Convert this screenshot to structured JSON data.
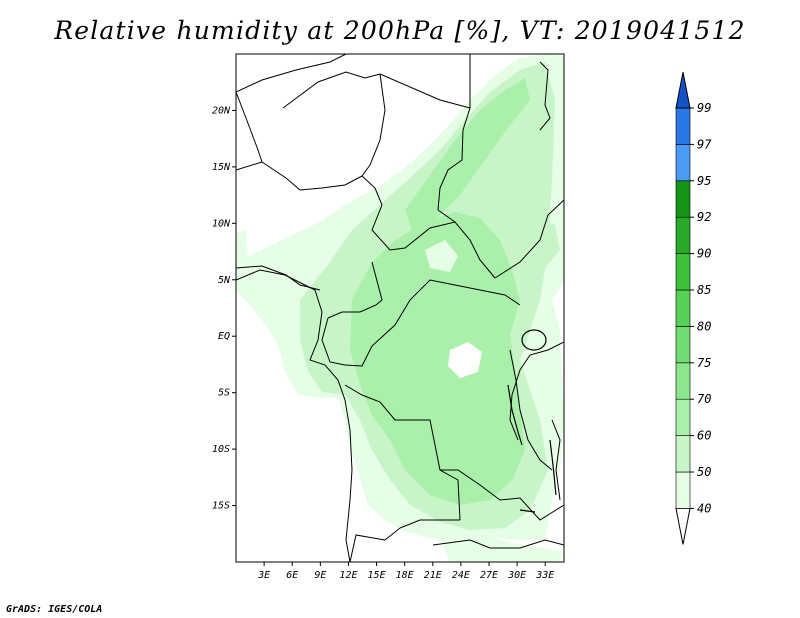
{
  "title": "Relative humidity at 200hPa [%], VT: 2019041512",
  "credit": "GrADS: IGES/COLA",
  "map": {
    "lon_range": [
      0,
      35
    ],
    "lat_range": [
      -20,
      25
    ],
    "lat_ticks": [
      {
        "lat": 20,
        "label": "20N"
      },
      {
        "lat": 15,
        "label": "15N"
      },
      {
        "lat": 10,
        "label": "10N"
      },
      {
        "lat": 5,
        "label": "5N"
      },
      {
        "lat": 0,
        "label": "EQ"
      },
      {
        "lat": -5,
        "label": "5S"
      },
      {
        "lat": -10,
        "label": "10S"
      },
      {
        "lat": -15,
        "label": "15S"
      }
    ],
    "lon_ticks": [
      {
        "lon": 3,
        "label": "3E"
      },
      {
        "lon": 6,
        "label": "6E"
      },
      {
        "lon": 9,
        "label": "9E"
      },
      {
        "lon": 12,
        "label": "12E"
      },
      {
        "lon": 15,
        "label": "15E"
      },
      {
        "lon": 18,
        "label": "18E"
      },
      {
        "lon": 21,
        "label": "21E"
      },
      {
        "lon": 24,
        "label": "24E"
      },
      {
        "lon": 27,
        "label": "27E"
      },
      {
        "lon": 30,
        "label": "30E"
      },
      {
        "lon": 33,
        "label": "33E"
      }
    ]
  },
  "colorbar": {
    "levels": [
      "40",
      "50",
      "60",
      "70",
      "75",
      "80",
      "85",
      "90",
      "92",
      "95",
      "97",
      "99"
    ],
    "colors": [
      "#ffffff",
      "#e6fde6",
      "#c8f5c8",
      "#aaf0aa",
      "#8de68d",
      "#72dc72",
      "#55d255",
      "#3cc03c",
      "#28aa28",
      "#149614",
      "#4b9bf5",
      "#2a77e6",
      "#1452c8"
    ]
  }
}
